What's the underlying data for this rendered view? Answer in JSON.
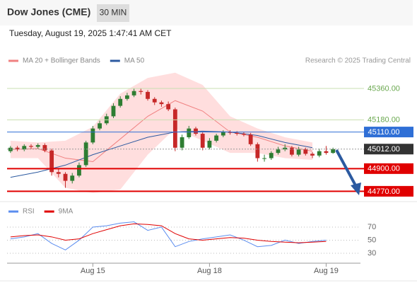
{
  "chart_data": {
    "type": "candlestick",
    "title": "Dow Jones (CME)",
    "timeframe": "30 MIN",
    "subtitle": "Tuesday, August 19, 2025 1:47:41 AM CET",
    "credit": "Research © 2025 Trading Central",
    "up_color": "#2e7d32",
    "down_color": "#c62828",
    "candles": [
      [
        45000,
        45030,
        44990,
        45020
      ],
      [
        45020,
        45030,
        45000,
        45010
      ],
      [
        45010,
        45040,
        45000,
        45030
      ],
      [
        45030,
        45040,
        45015,
        45025
      ],
      [
        45025,
        45045,
        45015,
        45035
      ],
      [
        45035,
        45045,
        44994,
        45004
      ],
      [
        45004,
        45014,
        44860,
        44880
      ],
      [
        44880,
        44900,
        44850,
        44870
      ],
      [
        44870,
        44880,
        44790,
        44830
      ],
      [
        44830,
        44875,
        44815,
        44860
      ],
      [
        44860,
        44935,
        44850,
        44920
      ],
      [
        44920,
        45060,
        44910,
        45050
      ],
      [
        45050,
        45145,
        45040,
        45130
      ],
      [
        45130,
        45175,
        45120,
        45160
      ],
      [
        45160,
        45215,
        45150,
        45200
      ],
      [
        45200,
        45275,
        45190,
        45260
      ],
      [
        45260,
        45315,
        45250,
        45300
      ],
      [
        45300,
        45335,
        45290,
        45320
      ],
      [
        45320,
        45360,
        45310,
        45345
      ],
      [
        45345,
        45360,
        45325,
        45340
      ],
      [
        45340,
        45350,
        45290,
        45300
      ],
      [
        45300,
        45310,
        45265,
        45280
      ],
      [
        45280,
        45290,
        45255,
        45270
      ],
      [
        45270,
        45285,
        45230,
        45240
      ],
      [
        45240,
        45250,
        45000,
        45020
      ],
      [
        45020,
        45095,
        45005,
        45080
      ],
      [
        45080,
        45145,
        45070,
        45130
      ],
      [
        45130,
        45140,
        45090,
        45100
      ],
      [
        45100,
        45110,
        45005,
        45020
      ],
      [
        45020,
        45075,
        45010,
        45060
      ],
      [
        45060,
        45100,
        45050,
        45090
      ],
      [
        45090,
        45120,
        45080,
        45110
      ],
      [
        45110,
        45120,
        45095,
        45105
      ],
      [
        45105,
        45115,
        45090,
        45100
      ],
      [
        45100,
        45110,
        45085,
        45095
      ],
      [
        45095,
        45105,
        45030,
        45040
      ],
      [
        45040,
        45050,
        44940,
        44960
      ],
      [
        44960,
        44980,
        44940,
        44960
      ],
      [
        44960,
        45000,
        44950,
        44990
      ],
      [
        44990,
        45025,
        44980,
        45010
      ],
      [
        45010,
        45040,
        45000,
        45020
      ],
      [
        45020,
        45030,
        44970,
        44980
      ],
      [
        44980,
        45025,
        44970,
        45010
      ],
      [
        45010,
        45020,
        44975,
        44985
      ],
      [
        44985,
        44995,
        44960,
        44975
      ],
      [
        44975,
        45015,
        44965,
        45000
      ],
      [
        45000,
        45030,
        44980,
        44990
      ],
      [
        44990,
        45020,
        44985,
        45012
      ]
    ],
    "xlim": [
      -0.5,
      51
    ],
    "xticks": [
      {
        "value": 12,
        "label": "Aug 15"
      },
      {
        "value": 29,
        "label": "Aug 18"
      },
      {
        "value": 46,
        "label": "Aug 19"
      }
    ],
    "ylim": [
      44720,
      45480
    ],
    "indicator_x": [
      0,
      4,
      8,
      12,
      16,
      20,
      24,
      28,
      32,
      36,
      40,
      44
    ],
    "series": [
      {
        "name": "MA 20 + Bollinger Bands",
        "color": "#f08080",
        "band_color": "#ffd6d6",
        "values": [
          45010,
          45015,
          44960,
          44940,
          45070,
          45200,
          45290,
          45230,
          45110,
          45080,
          45030,
          45000
        ],
        "upper": [
          45060,
          45050,
          45060,
          45140,
          45330,
          45420,
          45450,
          45380,
          45200,
          45130,
          45080,
          45050
        ],
        "lower": [
          44960,
          44960,
          44790,
          44760,
          44780,
          44980,
          45130,
          45060,
          44990,
          44990,
          44960,
          44950
        ]
      },
      {
        "name": "MA 50",
        "color": "#2c5aa0",
        "values": [
          44850,
          44880,
          44920,
          44980,
          45030,
          45080,
          45110,
          45115,
          45110,
          45090,
          45050,
          45020
        ]
      }
    ],
    "levels": [
      {
        "value": 45360,
        "label": "45360.00",
        "color": "#6aa84f",
        "line_color": "#c9dfb0",
        "boxed": false
      },
      {
        "value": 45180,
        "label": "45180.00",
        "color": "#6aa84f",
        "line_color": "#c9dfb0",
        "boxed": false
      },
      {
        "value": 45110,
        "label": "45110.00",
        "color": "#2f6fd6",
        "line_color": "#2f6fd6",
        "boxed": true
      },
      {
        "value": 45012,
        "label": "45012.00",
        "color": "#333333",
        "line_color": "#999999",
        "boxed": true
      },
      {
        "value": 44900,
        "label": "44900.00",
        "color": "#e00000",
        "line_color": "#e00000",
        "boxed": true
      },
      {
        "value": 44770,
        "label": "44770.00",
        "color": "#e00000",
        "line_color": "#e00000",
        "boxed": true
      }
    ],
    "rsi": {
      "x": [
        0,
        2,
        4,
        6,
        8,
        10,
        12,
        14,
        16,
        18,
        20,
        22,
        24,
        26,
        28,
        30,
        32,
        34,
        36,
        38,
        40,
        42,
        44,
        46
      ],
      "ylim": [
        20,
        80
      ],
      "yticks": [
        70,
        50,
        30
      ],
      "series": [
        {
          "name": "RSI",
          "color": "#5b8def",
          "values": [
            52,
            55,
            60,
            45,
            35,
            50,
            70,
            72,
            76,
            78,
            65,
            70,
            40,
            48,
            52,
            55,
            58,
            50,
            40,
            42,
            50,
            45,
            48,
            50
          ]
        },
        {
          "name": "9MA",
          "color": "#e00000",
          "values": [
            55,
            57,
            58,
            55,
            50,
            52,
            60,
            66,
            72,
            75,
            74,
            72,
            60,
            52,
            50,
            52,
            54,
            53,
            50,
            48,
            47,
            46,
            47,
            48
          ]
        }
      ]
    }
  }
}
